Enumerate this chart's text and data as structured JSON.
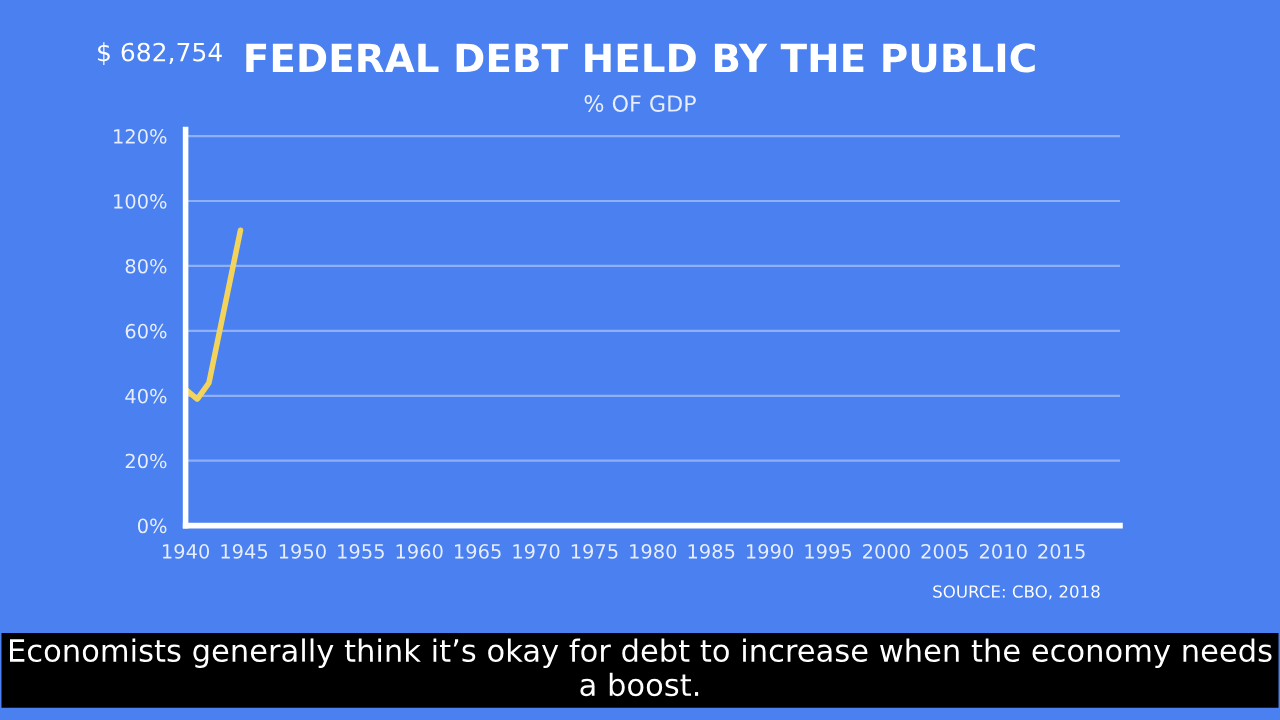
{
  "chart_data": {
    "type": "line",
    "title": "FEDERAL DEBT HELD BY THE PUBLIC",
    "subtitle": "% OF GDP",
    "x": [
      1940,
      1941,
      1942,
      1944.7
    ],
    "series": [
      {
        "color": "#f2d45c",
        "values": [
          42,
          39,
          44,
          91
        ]
      }
    ],
    "xlim": [
      1940,
      2020
    ],
    "xticks": [
      1940,
      1945,
      1950,
      1955,
      1960,
      1965,
      1970,
      1975,
      1980,
      1985,
      1990,
      1995,
      2000,
      2005,
      2010,
      2015
    ],
    "ylim": [
      0,
      122
    ],
    "yticks": [
      {
        "value": 0,
        "label": "0%"
      },
      {
        "value": 20,
        "label": "20%"
      },
      {
        "value": 40,
        "label": "40%"
      },
      {
        "value": 60,
        "label": "60%"
      },
      {
        "value": 80,
        "label": "80%"
      },
      {
        "value": 100,
        "label": "100%"
      },
      {
        "value": 120,
        "label": "120%"
      }
    ],
    "grid": "y",
    "marker": "none",
    "line_style": "solid",
    "annotations": [
      "$ 682,754",
      "SOURCE: CBO, 2018",
      "Economists generally think it’s okay for debt to increase when the economy needs a boost."
    ]
  }
}
